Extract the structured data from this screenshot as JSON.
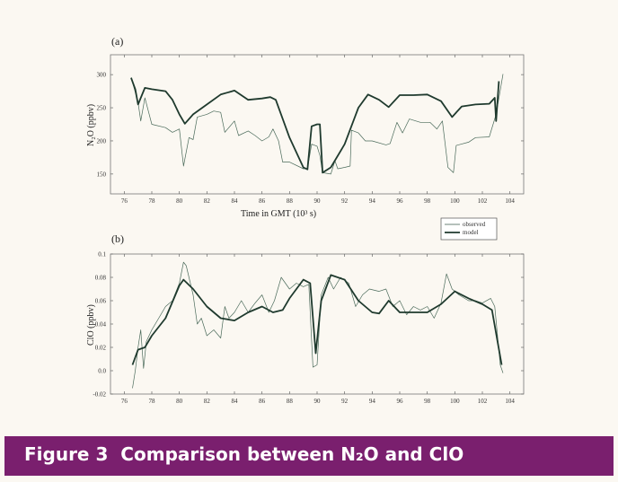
{
  "caption": "Figure 3  Comparison between N₂O and ClO",
  "colors": {
    "banner": "#7a1f6e",
    "line": "#1f3a2e",
    "background": "#fbf8f2"
  },
  "legend": {
    "observed": "observed",
    "model": "model"
  },
  "chart_data": [
    {
      "type": "line",
      "panel_label": "(a)",
      "xlabel": "Time in GMT (10³ s)",
      "ylabel": "N₂O (ppbv)",
      "xlim": [
        75,
        105
      ],
      "ylim": [
        120,
        330
      ],
      "xticks": [
        76,
        78,
        80,
        82,
        84,
        86,
        88,
        90,
        92,
        94,
        96,
        98,
        100,
        102,
        104
      ],
      "yticks": [
        150,
        200,
        250,
        300
      ],
      "grid": false,
      "series": [
        {
          "name": "observed",
          "x": [
            76.5,
            77,
            77.2,
            77.5,
            78,
            79,
            79.5,
            80,
            80.3,
            80.7,
            81,
            81.3,
            82,
            82.5,
            83,
            83.3,
            84,
            84.3,
            85,
            85.5,
            86,
            86.5,
            86.8,
            87.2,
            87.5,
            88,
            89,
            89.3,
            89.6,
            90,
            90.2,
            90.4,
            91,
            91.3,
            91.5,
            92,
            92.4,
            92.5,
            93,
            93.5,
            94,
            95,
            95.3,
            95.8,
            96.2,
            96.7,
            97.5,
            98.2,
            98.7,
            99.1,
            99.5,
            99.9,
            100.1,
            101,
            101.5,
            102.5,
            103,
            103.5
          ],
          "y": [
            296,
            258,
            230,
            265,
            225,
            220,
            213,
            218,
            162,
            205,
            202,
            236,
            240,
            245,
            243,
            213,
            230,
            208,
            215,
            208,
            200,
            206,
            218,
            200,
            168,
            168,
            158,
            158,
            195,
            192,
            178,
            152,
            150,
            170,
            158,
            160,
            162,
            216,
            212,
            200,
            200,
            194,
            196,
            228,
            212,
            233,
            228,
            228,
            218,
            230,
            160,
            152,
            193,
            198,
            205,
            206,
            240,
            301
          ]
        },
        {
          "name": "model",
          "x": [
            76.5,
            76.8,
            77,
            77.5,
            78,
            79,
            79.5,
            80,
            80.4,
            81,
            82,
            83,
            84,
            85,
            86,
            86.6,
            87,
            88,
            89,
            89.3,
            89.6,
            90,
            90.2,
            90.4,
            91,
            92,
            93,
            93.7,
            94.5,
            95.2,
            96,
            97,
            98,
            99,
            99.8,
            100.5,
            101.5,
            102.5,
            102.9,
            103,
            103.2
          ],
          "y": [
            295,
            278,
            255,
            280,
            278,
            275,
            262,
            240,
            226,
            240,
            255,
            270,
            276,
            262,
            264,
            266,
            262,
            205,
            160,
            157,
            222,
            225,
            225,
            152,
            160,
            195,
            250,
            270,
            262,
            251,
            269,
            269,
            270,
            260,
            236,
            252,
            255,
            256,
            265,
            230,
            290
          ]
        }
      ]
    },
    {
      "type": "line",
      "panel_label": "(b)",
      "xlabel": "",
      "ylabel": "ClO (ppbv)",
      "xlim": [
        75,
        105
      ],
      "ylim": [
        -0.02,
        0.1
      ],
      "xticks": [
        76,
        78,
        80,
        82,
        84,
        86,
        88,
        90,
        92,
        94,
        96,
        98,
        100,
        102,
        104
      ],
      "yticks": [
        -0.02,
        0.0,
        0.02,
        0.04,
        0.06,
        0.08,
        0.1
      ],
      "ytick_labels": [
        "-0.02",
        "0.0",
        "0.02",
        "0.04",
        "0.06",
        "0.08",
        "0.1"
      ],
      "grid": false,
      "legend_position": "top-right",
      "series": [
        {
          "name": "observed",
          "x": [
            76.6,
            76.8,
            77,
            77.2,
            77.4,
            77.6,
            78,
            78.5,
            79,
            79.5,
            80,
            80.3,
            80.5,
            81,
            81.3,
            81.6,
            82,
            82.5,
            83,
            83.3,
            83.6,
            84,
            84.5,
            85,
            85.5,
            86,
            86.5,
            86.9,
            87.4,
            88,
            88.5,
            89,
            89.4,
            89.7,
            90,
            90.3,
            90.8,
            91.2,
            91.7,
            92.3,
            92.8,
            93.3,
            93.8,
            94.5,
            95,
            95.5,
            96,
            96.5,
            97,
            97.5,
            98,
            98.5,
            99,
            99.4,
            99.8,
            100.3,
            101,
            101.5,
            102,
            102.6,
            102.9,
            103.3,
            103.5
          ],
          "y": [
            -0.015,
            0.0,
            0.02,
            0.035,
            0.002,
            0.025,
            0.035,
            0.045,
            0.055,
            0.06,
            0.075,
            0.093,
            0.09,
            0.065,
            0.04,
            0.045,
            0.03,
            0.035,
            0.028,
            0.055,
            0.045,
            0.05,
            0.06,
            0.05,
            0.058,
            0.065,
            0.05,
            0.06,
            0.08,
            0.07,
            0.075,
            0.072,
            0.074,
            0.003,
            0.005,
            0.065,
            0.08,
            0.07,
            0.08,
            0.075,
            0.055,
            0.065,
            0.07,
            0.068,
            0.07,
            0.055,
            0.06,
            0.048,
            0.055,
            0.052,
            0.055,
            0.045,
            0.058,
            0.083,
            0.07,
            0.065,
            0.06,
            0.06,
            0.058,
            0.062,
            0.055,
            0.005,
            -0.002
          ]
        },
        {
          "name": "model",
          "x": [
            76.6,
            77,
            77.5,
            78,
            79,
            80,
            80.3,
            81,
            82,
            83,
            84,
            85,
            86,
            86.8,
            87.5,
            88,
            89,
            89.5,
            89.9,
            90.3,
            91,
            92,
            93,
            94,
            94.5,
            95.2,
            96,
            97,
            98,
            99,
            100,
            101,
            102,
            102.7,
            103.4
          ],
          "y": [
            0.005,
            0.018,
            0.02,
            0.03,
            0.045,
            0.073,
            0.078,
            0.07,
            0.055,
            0.045,
            0.043,
            0.05,
            0.055,
            0.05,
            0.052,
            0.062,
            0.078,
            0.075,
            0.015,
            0.06,
            0.082,
            0.078,
            0.06,
            0.05,
            0.049,
            0.06,
            0.05,
            0.05,
            0.05,
            0.057,
            0.068,
            0.062,
            0.057,
            0.052,
            0.005
          ]
        }
      ]
    }
  ]
}
